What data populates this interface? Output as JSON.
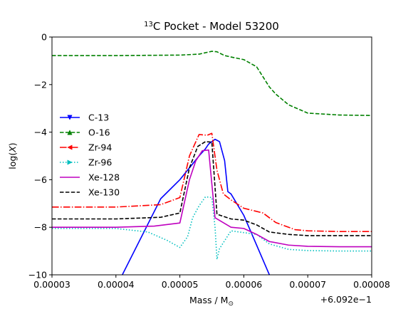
{
  "chart_data": {
    "type": "line",
    "title": {
      "superscript": "13",
      "main": "C Pocket - Model 53200"
    },
    "xlabel": {
      "main": "Mass / M",
      "subscript": "⊙"
    },
    "ylabel": {
      "main": "log(",
      "italic": "X",
      "end": ")"
    },
    "x_offset_text": "+6.092e−1",
    "xlim": [
      3e-05,
      8e-05
    ],
    "ylim": [
      -10,
      0
    ],
    "x_ticks": [
      3e-05,
      4e-05,
      5e-05,
      6e-05,
      7e-05,
      8e-05
    ],
    "x_tick_labels": [
      "0.00003",
      "0.00004",
      "0.00005",
      "0.00006",
      "0.00007",
      "0.00008"
    ],
    "y_ticks": [
      0,
      -2,
      -4,
      -6,
      -8,
      -10
    ],
    "y_tick_labels": [
      "0",
      "−2",
      "−4",
      "−6",
      "−8",
      "−10"
    ],
    "grid": false,
    "legend_position": "center-left",
    "series": [
      {
        "name": "C-13",
        "color": "#0000ff",
        "dash": "solid",
        "marker": "triangle-down",
        "points": [
          [
            4e-05,
            -10.8
          ],
          [
            4.1e-05,
            -10.0
          ],
          [
            4.7e-05,
            -6.8
          ],
          [
            5e-05,
            -6.0
          ],
          [
            5.3e-05,
            -5.0
          ],
          [
            5.4e-05,
            -4.7
          ],
          [
            5.45e-05,
            -4.5
          ],
          [
            5.55e-05,
            -4.3
          ],
          [
            5.62e-05,
            -4.4
          ],
          [
            5.7e-05,
            -5.2
          ],
          [
            5.75e-05,
            -6.5
          ],
          [
            5.8e-05,
            -6.6
          ],
          [
            6e-05,
            -7.5
          ],
          [
            6.4e-05,
            -10.0
          ],
          [
            6.45e-05,
            -10.5
          ]
        ]
      },
      {
        "name": "O-16",
        "color": "#008000",
        "dash": "dashed",
        "marker": "triangle-up",
        "points": [
          [
            3e-05,
            -0.78
          ],
          [
            4e-05,
            -0.78
          ],
          [
            5e-05,
            -0.76
          ],
          [
            5.3e-05,
            -0.72
          ],
          [
            5.5e-05,
            -0.6
          ],
          [
            5.58e-05,
            -0.62
          ],
          [
            5.7e-05,
            -0.78
          ],
          [
            5.8e-05,
            -0.84
          ],
          [
            6e-05,
            -0.95
          ],
          [
            6.2e-05,
            -1.25
          ],
          [
            6.4e-05,
            -2.1
          ],
          [
            6.5e-05,
            -2.4
          ],
          [
            6.7e-05,
            -2.85
          ],
          [
            7e-05,
            -3.2
          ],
          [
            7.5e-05,
            -3.28
          ],
          [
            8e-05,
            -3.3
          ]
        ]
      },
      {
        "name": "Zr-94",
        "color": "#ff0000",
        "dash": "dashdot",
        "marker": "triangle-left",
        "points": [
          [
            3e-05,
            -7.15
          ],
          [
            4e-05,
            -7.15
          ],
          [
            4.7e-05,
            -7.05
          ],
          [
            5e-05,
            -6.75
          ],
          [
            5.15e-05,
            -5.0
          ],
          [
            5.3e-05,
            -4.1
          ],
          [
            5.43e-05,
            -4.13
          ],
          [
            5.5e-05,
            -4.05
          ],
          [
            5.58e-05,
            -5.6
          ],
          [
            5.68e-05,
            -6.6
          ],
          [
            5.8e-05,
            -6.85
          ],
          [
            6e-05,
            -7.2
          ],
          [
            6.3e-05,
            -7.4
          ],
          [
            6.5e-05,
            -7.8
          ],
          [
            6.8e-05,
            -8.1
          ],
          [
            7e-05,
            -8.15
          ],
          [
            7.5e-05,
            -8.18
          ],
          [
            8e-05,
            -8.18
          ]
        ]
      },
      {
        "name": "Zr-96",
        "color": "#00bfbf",
        "dash": "dotted",
        "marker": "triangle-right",
        "points": [
          [
            3e-05,
            -8.05
          ],
          [
            4e-05,
            -8.05
          ],
          [
            4.5e-05,
            -8.2
          ],
          [
            4.8e-05,
            -8.55
          ],
          [
            5e-05,
            -8.85
          ],
          [
            5.12e-05,
            -8.4
          ],
          [
            5.2e-05,
            -7.6
          ],
          [
            5.3e-05,
            -7.1
          ],
          [
            5.4e-05,
            -6.72
          ],
          [
            5.5e-05,
            -6.75
          ],
          [
            5.55e-05,
            -8.0
          ],
          [
            5.58e-05,
            -9.35
          ],
          [
            5.62e-05,
            -8.9
          ],
          [
            5.8e-05,
            -8.15
          ],
          [
            6.2e-05,
            -8.3
          ],
          [
            6.4e-05,
            -8.7
          ],
          [
            6.7e-05,
            -8.93
          ],
          [
            7e-05,
            -8.98
          ],
          [
            7.5e-05,
            -9.0
          ],
          [
            8e-05,
            -9.0
          ]
        ]
      },
      {
        "name": "Xe-128",
        "color": "#bf00bf",
        "dash": "solid",
        "marker": "none",
        "points": [
          [
            3e-05,
            -8.0
          ],
          [
            4e-05,
            -8.0
          ],
          [
            4.6e-05,
            -7.95
          ],
          [
            5e-05,
            -7.82
          ],
          [
            5.15e-05,
            -6.0
          ],
          [
            5.25e-05,
            -5.2
          ],
          [
            5.35e-05,
            -4.78
          ],
          [
            5.45e-05,
            -4.75
          ],
          [
            5.55e-05,
            -7.6
          ],
          [
            5.8e-05,
            -8.0
          ],
          [
            6e-05,
            -8.05
          ],
          [
            6.2e-05,
            -8.3
          ],
          [
            6.4e-05,
            -8.6
          ],
          [
            6.7e-05,
            -8.75
          ],
          [
            7e-05,
            -8.8
          ],
          [
            7.5e-05,
            -8.82
          ],
          [
            8e-05,
            -8.82
          ]
        ]
      },
      {
        "name": "Xe-130",
        "color": "#000000",
        "dash": "dashed",
        "marker": "none",
        "points": [
          [
            3e-05,
            -7.65
          ],
          [
            4e-05,
            -7.65
          ],
          [
            4.7e-05,
            -7.58
          ],
          [
            5e-05,
            -7.4
          ],
          [
            5.15e-05,
            -5.5
          ],
          [
            5.28e-05,
            -4.6
          ],
          [
            5.4e-05,
            -4.4
          ],
          [
            5.5e-05,
            -4.42
          ],
          [
            5.58e-05,
            -7.45
          ],
          [
            5.8e-05,
            -7.65
          ],
          [
            6e-05,
            -7.7
          ],
          [
            6.2e-05,
            -7.9
          ],
          [
            6.4e-05,
            -8.2
          ],
          [
            6.7e-05,
            -8.3
          ],
          [
            7e-05,
            -8.35
          ],
          [
            7.5e-05,
            -8.35
          ],
          [
            8e-05,
            -8.35
          ]
        ]
      }
    ]
  }
}
